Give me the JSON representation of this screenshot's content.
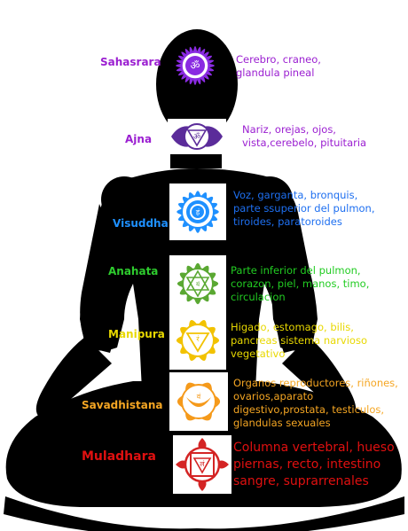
{
  "chakras": [
    {
      "id": "sahasrara",
      "name": "Sahasrara",
      "name_color": "#9b1fd1",
      "desc_color": "#9b1fd1",
      "symbol_color": "#8a2be2",
      "icon": "thousand-petal-lotus-om-icon",
      "lines": [
        "Cerebro, craneo,",
        "glandula pineal"
      ]
    },
    {
      "id": "ajna",
      "name": "Ajna",
      "name_color": "#9b1fd1",
      "desc_color": "#9b1fd1",
      "symbol_color": "#5b2c9a",
      "icon": "two-petal-om-icon",
      "lines": [
        "Nariz, orejas, ojos,",
        "vista,cerebelo, pituitaria"
      ]
    },
    {
      "id": "visuddha",
      "name": "Visuddha",
      "name_color": "#1e90ff",
      "desc_color": "#1e6ff0",
      "symbol_color": "#1e90ff",
      "icon": "sixteen-petal-ham-icon",
      "lines": [
        "Voz, garganta, bronquis,",
        "parte ssuperior del pulmon,",
        "tiroides, paratoroides"
      ]
    },
    {
      "id": "anahata",
      "name": "Anahata",
      "name_color": "#2ecc2e",
      "desc_color": "#22cc22",
      "symbol_color": "#5aa832",
      "icon": "twelve-petal-hexagram-icon",
      "lines": [
        "Parte inferior del pulmon,",
        "corazon, piel, manos, timo,",
        "circulacion"
      ]
    },
    {
      "id": "manipura",
      "name": "Manipura",
      "name_color": "#e8d800",
      "desc_color": "#e8d800",
      "symbol_color": "#f2c200",
      "icon": "ten-petal-triangle-ram-icon",
      "lines": [
        "Higado, estomago, bilis,",
        "pancreas sistema narvioso",
        "vegetativo"
      ]
    },
    {
      "id": "svadhistana",
      "name": "Savadhistana",
      "name_color": "#f5a623",
      "desc_color": "#f5a623",
      "symbol_color": "#f59a1b",
      "icon": "six-petal-crescent-vam-icon",
      "lines": [
        "Organos reproductores, riñones,",
        "ovarios,aparato",
        "digestivo,prostata, testiculos,",
        "glandulas sexuales"
      ]
    },
    {
      "id": "muladhara",
      "name": "Muladhara",
      "name_color": "#e01010",
      "desc_color": "#e01010",
      "symbol_color": "#d42424",
      "icon": "four-petal-square-lam-icon",
      "lines": [
        "Columna vertebral, hueso",
        "piernas, recto, intestino",
        "sangre, suprarrenales"
      ]
    }
  ],
  "silhouette_icon": "meditating-person-silhouette-icon"
}
